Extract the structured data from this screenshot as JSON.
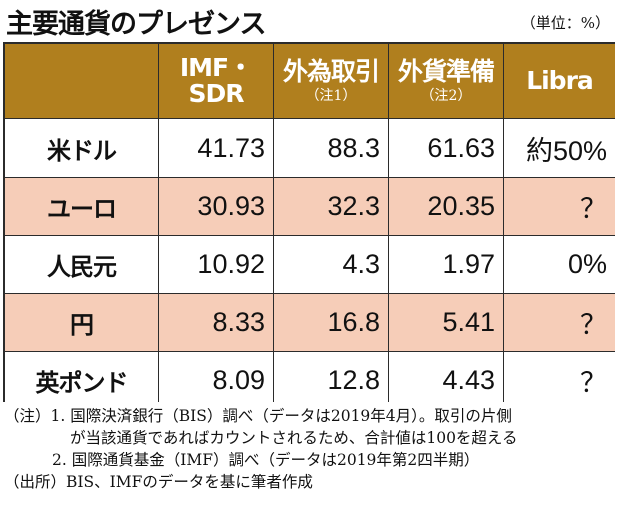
{
  "title": "主要通貨のプレゼンス",
  "unit": "（単位：%）",
  "header": {
    "columns": [
      {
        "main": "IMF・",
        "main2": "SDR",
        "sub": ""
      },
      {
        "main": "外為取引",
        "main2": "",
        "sub": "（注1）"
      },
      {
        "main": "外貨準備",
        "main2": "",
        "sub": "（注2）"
      },
      {
        "main": "Libra",
        "main2": "",
        "sub": ""
      }
    ]
  },
  "rows": [
    {
      "currency": "米ドル",
      "values": [
        "41.73",
        "88.3",
        "61.63",
        "約50%"
      ]
    },
    {
      "currency": "ユーロ",
      "values": [
        "30.93",
        "32.3",
        "20.35",
        "？"
      ]
    },
    {
      "currency": "人民元",
      "values": [
        "10.92",
        "4.3",
        "1.97",
        "0%"
      ]
    },
    {
      "currency": "円",
      "values": [
        "8.33",
        "16.8",
        "5.41",
        "？"
      ]
    },
    {
      "currency": "英ポンド",
      "values": [
        "8.09",
        "12.8",
        "4.43",
        "？"
      ]
    }
  ],
  "notes": {
    "line1": "（注）1. 国際決済銀行（BIS）調べ（データは2019年4月）。取引の片側",
    "line2": "が当該通貨であればカウントされるため、合計値は100を超える",
    "line3": "2. 国際通貨基金（IMF）調べ（データは2019年第2四半期）",
    "line4": "（出所）BIS、IMFのデータを基に筆者作成"
  }
}
